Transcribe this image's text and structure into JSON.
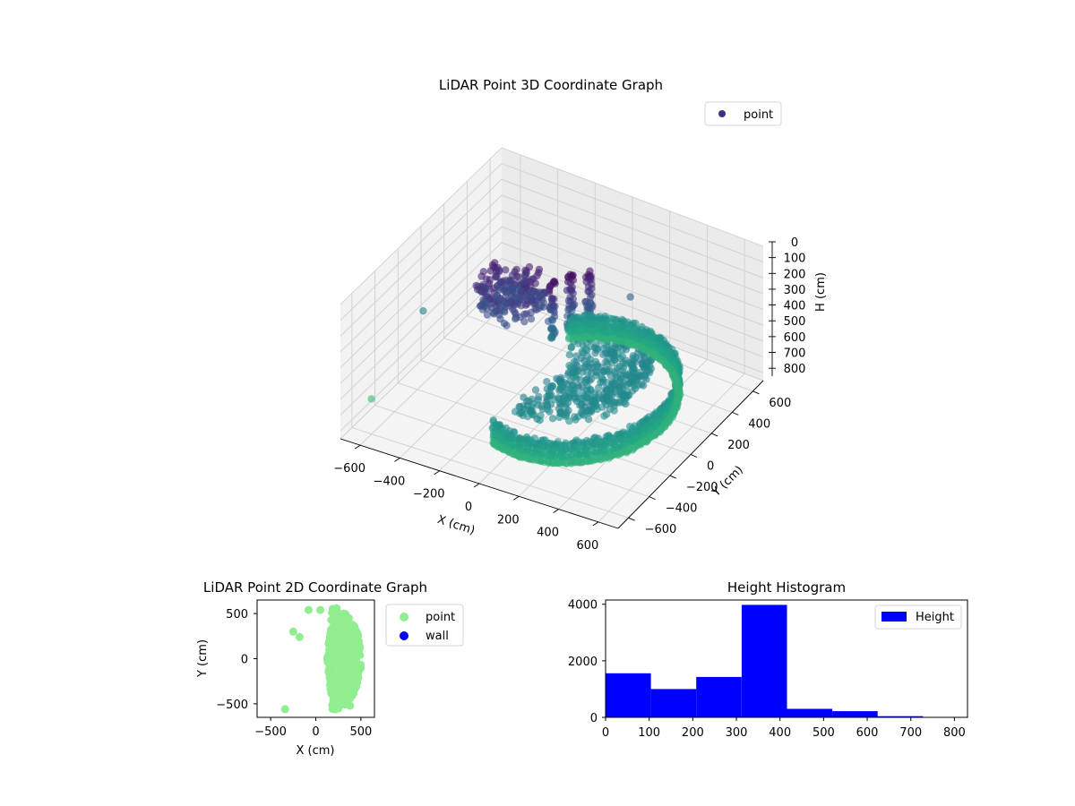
{
  "chart_data": [
    {
      "type": "scatter3d",
      "title": "LiDAR Point 3D Coordinate Graph",
      "xlabel": "X (cm)",
      "ylabel": "Y (cm)",
      "zlabel": "H (cm)",
      "xlim": [
        -700,
        700
      ],
      "ylim": [
        -700,
        700
      ],
      "zlim": [
        850,
        0
      ],
      "xticks": [
        "−600",
        "−400",
        "−200",
        "0",
        "200",
        "400",
        "600"
      ],
      "yticks": [
        "−600",
        "−400",
        "−200",
        "0",
        "200",
        "400",
        "600"
      ],
      "zticks": [
        "0",
        "100",
        "200",
        "300",
        "400",
        "500",
        "600",
        "700",
        "800"
      ],
      "legend": [
        "point"
      ],
      "legend_position": "top-right",
      "colormap": "viridis",
      "grid": true,
      "series": [
        {
          "name": "point"
        }
      ]
    },
    {
      "type": "scatter",
      "title": "LiDAR Point 2D Coordinate Graph",
      "xlabel": "X (cm)",
      "ylabel": "Y (cm)",
      "xlim": [
        -650,
        650
      ],
      "ylim": [
        -650,
        650
      ],
      "xticks": [
        "−500",
        "0",
        "500"
      ],
      "yticks": [
        "500",
        "0",
        "−500"
      ],
      "legend_position": "right, outside",
      "series": [
        {
          "name": "point",
          "color": "#90ee90"
        },
        {
          "name": "wall",
          "color": "#0000ff"
        }
      ]
    },
    {
      "type": "bar",
      "title": "Height Histogram",
      "xlabel": "",
      "ylabel": "",
      "xlim": [
        0,
        830
      ],
      "ylim": [
        0,
        4150
      ],
      "xticks": [
        "0",
        "100",
        "200",
        "300",
        "400",
        "500",
        "600",
        "700",
        "800"
      ],
      "yticks": [
        "0",
        "2000",
        "4000"
      ],
      "bin_edges": [
        0,
        104,
        208,
        312,
        416,
        520,
        624,
        728,
        832
      ],
      "values": [
        1560,
        1000,
        1430,
        3980,
        300,
        220,
        40,
        10
      ],
      "color": "#0000ff",
      "legend_position": "top-right",
      "series": [
        {
          "name": "Height"
        }
      ]
    }
  ]
}
